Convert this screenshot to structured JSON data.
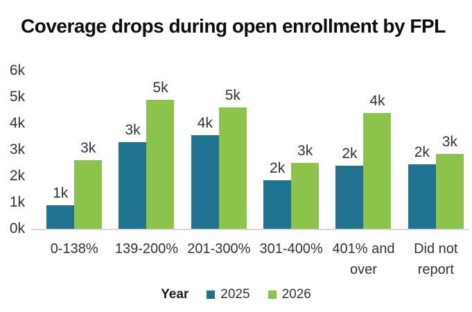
{
  "title": "Coverage drops during open enrollment by FPL",
  "colors": {
    "series_2025": "#1F7391",
    "series_2026": "#8CC34B",
    "axis_line": "#D9D9D9",
    "axis_text": "#333333",
    "title_text": "#0D0D0D"
  },
  "legend": {
    "title": "Year",
    "entries": [
      {
        "label": "2025",
        "color": "#1F7391"
      },
      {
        "label": "2026",
        "color": "#8CC34B"
      }
    ]
  },
  "chart_data": {
    "type": "bar",
    "title": "Coverage drops during open enrollment by FPL",
    "categories": [
      "0-138%",
      "139-200%",
      "201-300%",
      "301-400%",
      "401% and over",
      "Did not report"
    ],
    "series": [
      {
        "name": "2025",
        "color": "#1F7391",
        "values": [
          900,
          3300,
          3550,
          1850,
          2400,
          2450
        ],
        "data_labels": [
          "1k",
          "3k",
          "4k",
          "2k",
          "2k",
          "2k"
        ]
      },
      {
        "name": "2026",
        "color": "#8CC34B",
        "values": [
          2600,
          4900,
          4600,
          2500,
          4400,
          2850
        ],
        "data_labels": [
          "3k",
          "5k",
          "5k",
          "3k",
          "4k",
          "3k"
        ]
      }
    ],
    "xlabel": "",
    "ylabel": "",
    "ylim": [
      0,
      6000
    ],
    "yticks": [
      "0k",
      "1k",
      "2k",
      "3k",
      "4k",
      "5k",
      "6k"
    ],
    "grid": false,
    "legend_title": "Year",
    "legend_position": "bottom"
  }
}
